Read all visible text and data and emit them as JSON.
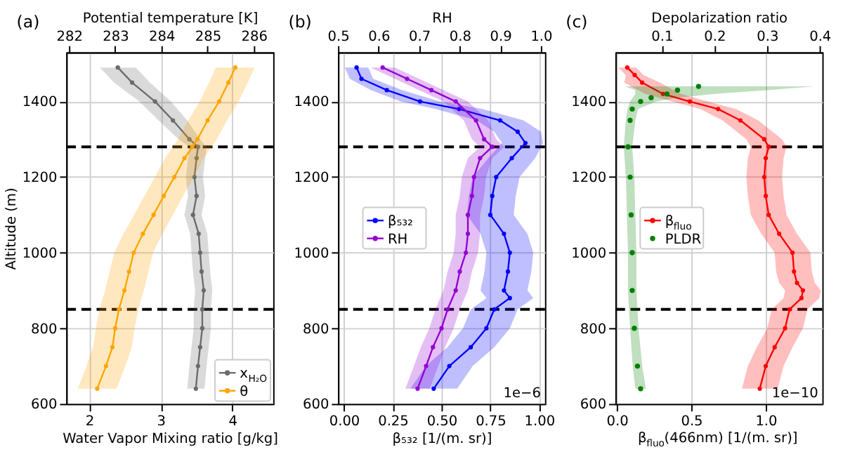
{
  "chart_data": [
    {
      "type": "line",
      "title": "(a)",
      "xlabel": "Water Vapor Mixing ratio [g/kg]",
      "x2label": "Potential temperature [K]",
      "ylabel": "Altitude (m)",
      "orientation": "horizontal",
      "xlim": [
        1.68,
        4.57
      ],
      "xticks": [
        2,
        3,
        4
      ],
      "x2lim": [
        281.94,
        286.42
      ],
      "x2ticks": [
        282,
        283,
        284,
        285,
        286
      ],
      "ylim": [
        600,
        1530
      ],
      "yticks": [
        600,
        800,
        1000,
        1200,
        1400
      ],
      "grid": true,
      "legend": "bottom right",
      "marker": "circle",
      "ref_lines": [
        {
          "axis": "y",
          "value": 1280,
          "color": "#000000",
          "line_style": "dashed"
        },
        {
          "axis": "y",
          "value": 850,
          "color": "#000000",
          "line_style": "dashed"
        }
      ],
      "series": [
        {
          "name": "x$_{H₂O}$",
          "color": "#6b6b6b",
          "x": [
            640,
            700,
            750,
            800,
            850,
            900,
            950,
            1000,
            1050,
            1100,
            1150,
            1200,
            1250,
            1280,
            1300,
            1350,
            1400,
            1450,
            1490
          ],
          "values": [
            3.49,
            3.52,
            3.55,
            3.58,
            3.58,
            3.6,
            3.57,
            3.55,
            3.53,
            3.45,
            3.5,
            3.47,
            3.5,
            3.52,
            3.4,
            3.17,
            2.92,
            2.6,
            2.4
          ],
          "lower": [
            3.37,
            3.4,
            3.43,
            3.46,
            3.46,
            3.48,
            3.45,
            3.43,
            3.41,
            3.33,
            3.38,
            3.35,
            3.38,
            3.4,
            3.25,
            2.97,
            2.7,
            2.35,
            2.15
          ],
          "upper": [
            3.61,
            3.64,
            3.67,
            3.7,
            3.7,
            3.72,
            3.69,
            3.67,
            3.65,
            3.57,
            3.62,
            3.59,
            3.62,
            3.64,
            3.55,
            3.37,
            3.14,
            2.85,
            2.65
          ]
        },
        {
          "name": "θ",
          "color": "#ffa500",
          "axis": "x2",
          "x": [
            640,
            700,
            750,
            800,
            850,
            900,
            950,
            1000,
            1050,
            1100,
            1150,
            1200,
            1250,
            1280,
            1300,
            1350,
            1400,
            1450,
            1490
          ],
          "values": [
            282.61,
            282.8,
            282.94,
            283.0,
            283.08,
            283.2,
            283.3,
            283.4,
            283.6,
            283.83,
            284.05,
            284.28,
            284.5,
            284.67,
            284.78,
            285.0,
            285.25,
            285.45,
            285.6
          ],
          "lower": [
            282.19,
            282.38,
            282.52,
            282.58,
            282.66,
            282.78,
            282.88,
            282.98,
            283.18,
            283.41,
            283.63,
            283.86,
            284.08,
            284.25,
            284.36,
            284.58,
            284.83,
            285.03,
            285.18
          ],
          "upper": [
            283.03,
            283.22,
            283.36,
            283.42,
            283.5,
            283.62,
            283.72,
            283.82,
            284.02,
            284.25,
            284.47,
            284.7,
            284.92,
            285.09,
            285.2,
            285.42,
            285.67,
            285.87,
            286.02
          ]
        }
      ]
    },
    {
      "type": "line",
      "title": "(b)",
      "xlabel": "β₅₃₂ [1/(m. sr)]",
      "x2label": "RH",
      "orientation": "horizontal",
      "xlim": [
        -0.03,
        1.03
      ],
      "xticks": [
        {
          "value": 0,
          "label": "0.00"
        },
        0.25,
        {
          "value": 0.5,
          "label": "0.50"
        },
        0.75,
        {
          "value": 1,
          "label": "1.00"
        }
      ],
      "x2lim": [
        0.5,
        1.01
      ],
      "x2ticks": [
        0.5,
        0.6,
        0.7,
        0.8,
        0.9,
        {
          "value": 1,
          "label": "1.0"
        }
      ],
      "ylim": [
        600,
        1530
      ],
      "yticks": [
        600,
        800,
        1000,
        1200,
        1400
      ],
      "grid": true,
      "legend": "left",
      "marker": "circle",
      "annotations": [
        "1e−6"
      ],
      "ref_lines": [
        {
          "axis": "y",
          "value": 1280,
          "color": "#000000",
          "line_style": "dashed"
        },
        {
          "axis": "y",
          "value": 850,
          "color": "#000000",
          "line_style": "dashed"
        }
      ],
      "series": [
        {
          "name": "β₅₃₂",
          "color": "#0000ff",
          "x": [
            640,
            700,
            750,
            800,
            850,
            880,
            900,
            950,
            1000,
            1050,
            1100,
            1150,
            1200,
            1250,
            1290,
            1320,
            1350,
            1380,
            1400,
            1430,
            1460,
            1490
          ],
          "values": [
            0.46,
            0.54,
            0.65,
            0.73,
            0.77,
            0.85,
            0.82,
            0.84,
            0.85,
            0.82,
            0.75,
            0.76,
            0.78,
            0.86,
            0.93,
            0.89,
            0.8,
            0.59,
            0.39,
            0.22,
            0.09,
            0.065
          ],
          "lower": [
            0.34,
            0.42,
            0.53,
            0.61,
            0.65,
            0.73,
            0.7,
            0.72,
            0.73,
            0.7,
            0.63,
            0.64,
            0.66,
            0.74,
            0.81,
            0.77,
            0.68,
            0.47,
            0.29,
            0.14,
            0.03,
            0.005
          ],
          "upper": [
            0.58,
            0.66,
            0.77,
            0.85,
            0.89,
            0.97,
            0.94,
            0.96,
            0.97,
            0.94,
            0.87,
            0.88,
            0.9,
            0.98,
            1.02,
            1.01,
            0.92,
            0.71,
            0.49,
            0.3,
            0.15,
            0.125
          ]
        },
        {
          "name": "RH",
          "color": "#9400d3",
          "axis": "x2",
          "x": [
            640,
            700,
            750,
            800,
            850,
            900,
            950,
            1000,
            1050,
            1100,
            1150,
            1200,
            1250,
            1280,
            1300,
            1350,
            1400,
            1430,
            1460,
            1490
          ],
          "values": [
            0.696,
            0.717,
            0.734,
            0.755,
            0.77,
            0.79,
            0.8,
            0.815,
            0.82,
            0.82,
            0.83,
            0.835,
            0.85,
            0.88,
            0.86,
            0.84,
            0.79,
            0.73,
            0.67,
            0.61
          ],
          "lower": [
            0.666,
            0.687,
            0.704,
            0.725,
            0.74,
            0.76,
            0.77,
            0.785,
            0.79,
            0.79,
            0.8,
            0.805,
            0.82,
            0.85,
            0.83,
            0.81,
            0.76,
            0.7,
            0.64,
            0.58
          ],
          "upper": [
            0.726,
            0.747,
            0.764,
            0.785,
            0.8,
            0.82,
            0.83,
            0.845,
            0.85,
            0.85,
            0.86,
            0.865,
            0.88,
            0.91,
            0.89,
            0.87,
            0.82,
            0.76,
            0.7,
            0.64
          ]
        }
      ]
    },
    {
      "type": "line",
      "title": "(c)",
      "xlabel": "β$_{fluo}$(466nm) [1/(m. sr)]",
      "x2label": "Depolarization ratio",
      "orientation": "horizontal",
      "xlim": [
        -0.01,
        1.38
      ],
      "xticks": [
        {
          "value": 0,
          "label": "0.0"
        },
        0.5,
        {
          "value": 1,
          "label": "1.0"
        }
      ],
      "x2lim": [
        0.012,
        0.405
      ],
      "x2ticks": [
        0.1,
        0.2,
        0.3,
        0.4
      ],
      "ylim": [
        600,
        1530
      ],
      "yticks": [
        600,
        800,
        1000,
        1200,
        1400
      ],
      "grid": true,
      "legend": "left",
      "marker": "circle",
      "annotations": [
        "1e−10"
      ],
      "ref_lines": [
        {
          "axis": "y",
          "value": 1280,
          "color": "#000000",
          "line_style": "dashed"
        },
        {
          "axis": "y",
          "value": 850,
          "color": "#000000",
          "line_style": "dashed"
        }
      ],
      "series": [
        {
          "name": "β$_{fluo}$",
          "color": "#ff0000",
          "x": [
            640,
            700,
            750,
            800,
            850,
            880,
            900,
            920,
            950,
            1000,
            1050,
            1100,
            1150,
            1200,
            1250,
            1280,
            1300,
            1350,
            1380,
            1400,
            1420,
            1450,
            1470,
            1490
          ],
          "values": [
            0.96,
            1.0,
            1.06,
            1.13,
            1.16,
            1.24,
            1.25,
            1.21,
            1.19,
            1.18,
            1.09,
            1.02,
            1.0,
            0.99,
            1.0,
            1.02,
            0.99,
            0.83,
            0.68,
            0.49,
            0.31,
            0.17,
            0.12,
            0.07
          ],
          "lower": [
            0.84,
            0.88,
            0.94,
            1.01,
            1.04,
            1.12,
            1.13,
            1.09,
            1.07,
            1.06,
            0.97,
            0.9,
            0.88,
            0.87,
            0.88,
            0.9,
            0.87,
            0.71,
            0.56,
            0.37,
            0.19,
            0.05,
            0.06,
            0.01
          ],
          "upper": [
            1.08,
            1.12,
            1.18,
            1.25,
            1.28,
            1.36,
            1.37,
            1.33,
            1.31,
            1.3,
            1.21,
            1.14,
            1.12,
            1.11,
            1.12,
            1.14,
            1.11,
            0.95,
            0.8,
            0.61,
            0.43,
            0.29,
            0.18,
            0.13
          ]
        },
        {
          "name": "PLDR",
          "color": "#008000",
          "type": "scatter",
          "axis": "x2",
          "x": [
            640,
            700,
            800,
            900,
            1000,
            1100,
            1200,
            1280,
            1350,
            1380,
            1400,
            1410,
            1420,
            1430,
            1440
          ],
          "values": [
            0.06,
            0.054,
            0.048,
            0.044,
            0.044,
            0.042,
            0.04,
            0.036,
            0.04,
            0.044,
            0.06,
            0.08,
            0.11,
            0.13,
            0.17
          ],
          "lower": [
            0.05,
            0.045,
            0.04,
            0.036,
            0.036,
            0.034,
            0.032,
            0.028,
            0.032,
            0.035,
            0.04,
            0.045,
            0.05,
            0.05,
            0.03
          ],
          "upper": [
            0.07,
            0.063,
            0.056,
            0.052,
            0.052,
            0.05,
            0.048,
            0.044,
            0.05,
            0.055,
            0.09,
            0.13,
            0.2,
            0.3,
            0.39
          ]
        }
      ]
    }
  ]
}
